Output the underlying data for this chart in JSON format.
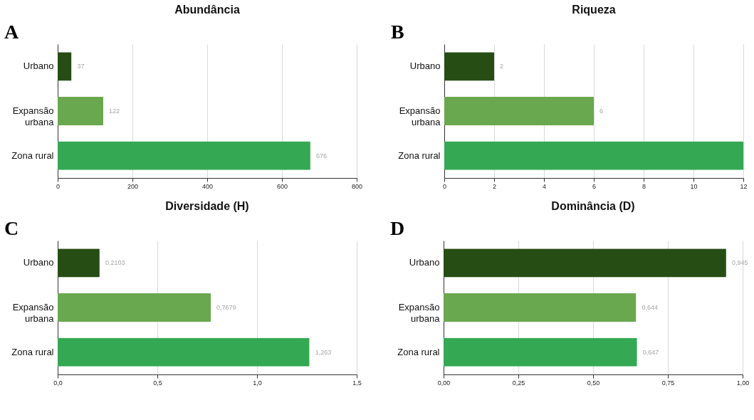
{
  "chart_data": [
    {
      "type": "bar",
      "orientation": "horizontal",
      "title": "Abundância",
      "annotations": [
        "A"
      ],
      "categories": [
        "Urbano",
        "Expansão urbana",
        "Zona rural"
      ],
      "values": [
        37,
        122,
        676
      ],
      "value_labels": [
        "37",
        "122",
        "676"
      ],
      "colors": [
        "#264d14",
        "#6aa84f",
        "#34a853"
      ],
      "xlim": [
        0,
        800
      ],
      "xticks": [
        0,
        200,
        400,
        600,
        800
      ],
      "grid": "x"
    },
    {
      "type": "bar",
      "orientation": "horizontal",
      "title": "Riqueza",
      "annotations": [
        "B"
      ],
      "categories": [
        "Urbano",
        "Expansão urbana",
        "Zona rural"
      ],
      "values": [
        2,
        6,
        12
      ],
      "value_labels": [
        "2",
        "6",
        null
      ],
      "colors": [
        "#264d14",
        "#6aa84f",
        "#34a853"
      ],
      "xlim": [
        0,
        12
      ],
      "xticks": [
        0,
        2,
        4,
        6,
        8,
        10,
        12
      ],
      "grid": "x"
    },
    {
      "type": "bar",
      "orientation": "horizontal",
      "title": "Diversidade (H)",
      "annotations": [
        "C"
      ],
      "categories": [
        "Urbano",
        "Expansão urbana",
        "Zona rural"
      ],
      "values": [
        0.2103,
        0.7679,
        1.263
      ],
      "value_labels": [
        "0,2103",
        "0,7679",
        "1,263"
      ],
      "colors": [
        "#264d14",
        "#6aa84f",
        "#34a853"
      ],
      "xlim": [
        0,
        1.5
      ],
      "xticks": [
        {
          "value": 0,
          "label": "0,0"
        },
        {
          "value": 0.5,
          "label": "0,5"
        },
        {
          "value": 1,
          "label": "1,0"
        },
        {
          "value": 1.5,
          "label": "1,5"
        }
      ],
      "grid": "x"
    },
    {
      "type": "bar",
      "orientation": "horizontal",
      "title": "Dominância (D)",
      "annotations": [
        "D"
      ],
      "categories": [
        "Urbano",
        "Expansão urbana",
        "Zona rural"
      ],
      "values": [
        0.945,
        0.644,
        0.647
      ],
      "value_labels": [
        "0,945",
        "0,644",
        "0,647"
      ],
      "colors": [
        "#264d14",
        "#6aa84f",
        "#34a853"
      ],
      "xlim": [
        0,
        1
      ],
      "xticks": [
        {
          "value": 0,
          "label": "0,00"
        },
        {
          "value": 0.25,
          "label": "0,25"
        },
        {
          "value": 0.5,
          "label": "0,50"
        },
        {
          "value": 0.75,
          "label": "0,75"
        },
        {
          "value": 1,
          "label": "1,00"
        }
      ],
      "grid": "x"
    }
  ]
}
